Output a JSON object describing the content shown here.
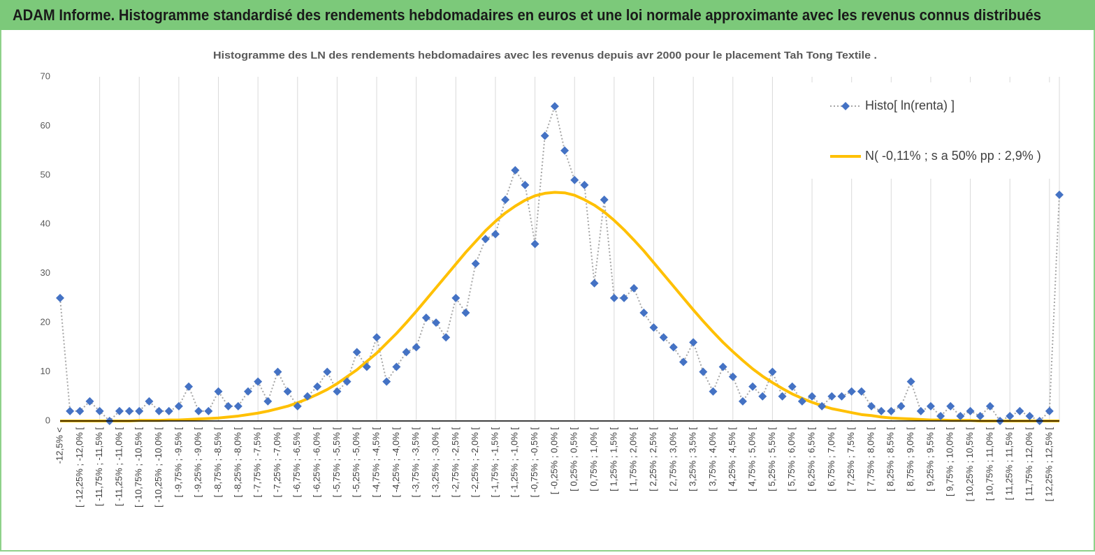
{
  "header": {
    "title": "ADAM Informe. Histogramme standardisé des rendements hebdomadaires en euros et une loi normale approximante avec les revenus connus distribués"
  },
  "chart_data": {
    "type": "line",
    "title": "Histogramme des LN des rendements hebdomadaires avec les revenus depuis avr 2000 pour le placement Tah Tong Textile .",
    "categories": [
      "-12,5% <",
      null,
      "[ -12,25% ; -12,0% [",
      null,
      "[ -11,75% ; -11,5% [",
      null,
      "[ -11,25% ; -11,0% [",
      null,
      "[ -10,75% ; -10,5% [",
      null,
      "[ -10,25% ; -10,0% [",
      null,
      "[ -9,75% ; -9,5% [",
      null,
      "[ -9,25% ; -9,0% [",
      null,
      "[ -8,75% ; -8,5% [",
      null,
      "[ -8,25% ; -8,0% [",
      null,
      "[ -7,75% ; -7,5% [",
      null,
      "[ -7,25% ; -7,0% [",
      null,
      "[ -6,75% ; -6,5% [",
      null,
      "[ -6,25% ; -6,0% [",
      null,
      "[ -5,75% ; -5,5% [",
      null,
      "[ -5,25% ; -5,0% [",
      null,
      "[ -4,75% ; -4,5% [",
      null,
      "[ -4,25% ; -4,0% [",
      null,
      "[ -3,75% ; -3,5% [",
      null,
      "[ -3,25% ; -3,0% [",
      null,
      "[ -2,75% ; -2,5% [",
      null,
      "[ -2,25% ; -2,0% [",
      null,
      "[ -1,75% ; -1,5% [",
      null,
      "[ -1,25% ; -1,0% [",
      null,
      "[ -0,75% ; -0,5% [",
      null,
      "[ -0,25% ; 0,0% [",
      null,
      "[ 0,25% ; 0,5% [",
      null,
      "[ 0,75% ; 1,0% [",
      null,
      "[ 1,25% ; 1,5% [",
      null,
      "[ 1,75% ; 2,0% [",
      null,
      "[ 2,25% ; 2,5% [",
      null,
      "[ 2,75% ; 3,0% [",
      null,
      "[ 3,25% ; 3,5% [",
      null,
      "[ 3,75% ; 4,0% [",
      null,
      "[ 4,25% ; 4,5% [",
      null,
      "[ 4,75% ; 5,0% [",
      null,
      "[ 5,25% ; 5,5% [",
      null,
      "[ 5,75% ; 6,0% [",
      null,
      "[ 6,25% ; 6,5% [",
      null,
      "[ 6,75% ; 7,0% [",
      null,
      "[ 7,25% ; 7,5% [",
      null,
      "[ 7,75% ; 8,0% [",
      null,
      "[ 8,25% ; 8,5% [",
      null,
      "[ 8,75% ; 9,0% [",
      null,
      "[ 9,25% ; 9,5% [",
      null,
      "[ 9,75% ; 10,0% [",
      null,
      "[ 10,25% ; 10,5% [",
      null,
      "[ 10,75% ; 11,0% [",
      null,
      "[ 11,25% ; 11,5% [",
      null,
      "[ 11,75% ; 12,0% [",
      null,
      "[ 12,25% ; 12,5% [",
      null
    ],
    "series": [
      {
        "name": "Histo[ ln(renta) ]",
        "color": "#4472c4",
        "line_color": "#a6a6a6",
        "values": [
          25,
          2,
          2,
          4,
          2,
          0,
          2,
          2,
          2,
          4,
          2,
          2,
          3,
          7,
          2,
          2,
          6,
          3,
          3,
          6,
          8,
          4,
          10,
          6,
          3,
          5,
          7,
          10,
          6,
          8,
          14,
          11,
          17,
          8,
          11,
          14,
          15,
          21,
          20,
          17,
          25,
          22,
          32,
          37,
          38,
          45,
          51,
          48,
          36,
          58,
          64,
          55,
          49,
          48,
          28,
          45,
          25,
          25,
          27,
          22,
          19,
          17,
          15,
          12,
          16,
          10,
          6,
          11,
          9,
          4,
          7,
          5,
          10,
          5,
          7,
          4,
          5,
          3,
          5,
          5,
          6,
          6,
          3,
          2,
          2,
          3,
          8,
          2,
          3,
          1,
          3,
          1,
          2,
          1,
          3,
          0,
          1,
          2,
          1,
          0,
          2,
          46
        ]
      },
      {
        "name": "N( -0,11% ; s a 50% pp : 2,9% )",
        "color": "#ffc000",
        "values": [
          0,
          0,
          0,
          0,
          0,
          0,
          0,
          0,
          0.1,
          0.1,
          0.1,
          0.2,
          0.2,
          0.3,
          0.4,
          0.5,
          0.6,
          0.8,
          1.0,
          1.3,
          1.6,
          2.0,
          2.5,
          3.0,
          3.7,
          4.5,
          5.4,
          6.4,
          7.6,
          9.0,
          10.4,
          12.1,
          13.8,
          15.8,
          17.8,
          20.0,
          22.3,
          24.7,
          27.1,
          29.5,
          31.9,
          34.3,
          36.5,
          38.7,
          40.6,
          42.3,
          43.7,
          44.9,
          45.8,
          46.3,
          46.5,
          46.4,
          45.9,
          45.0,
          43.9,
          42.5,
          40.8,
          38.9,
          36.8,
          34.6,
          32.2,
          29.8,
          27.4,
          25.0,
          22.6,
          20.3,
          18.1,
          16.0,
          14.1,
          12.3,
          10.6,
          9.1,
          7.8,
          6.6,
          5.5,
          4.6,
          3.8,
          3.1,
          2.5,
          2.1,
          1.7,
          1.3,
          1.1,
          0.8,
          0.6,
          0.5,
          0.4,
          0.3,
          0.2,
          0.2,
          0.1,
          0.1,
          0.1,
          0,
          0,
          0,
          0,
          0,
          0,
          0,
          0,
          0
        ]
      }
    ],
    "ylim": [
      0,
      70
    ],
    "yticks": [
      0,
      10,
      20,
      30,
      40,
      50,
      60,
      70
    ],
    "grid": true,
    "legend": "upper right"
  }
}
